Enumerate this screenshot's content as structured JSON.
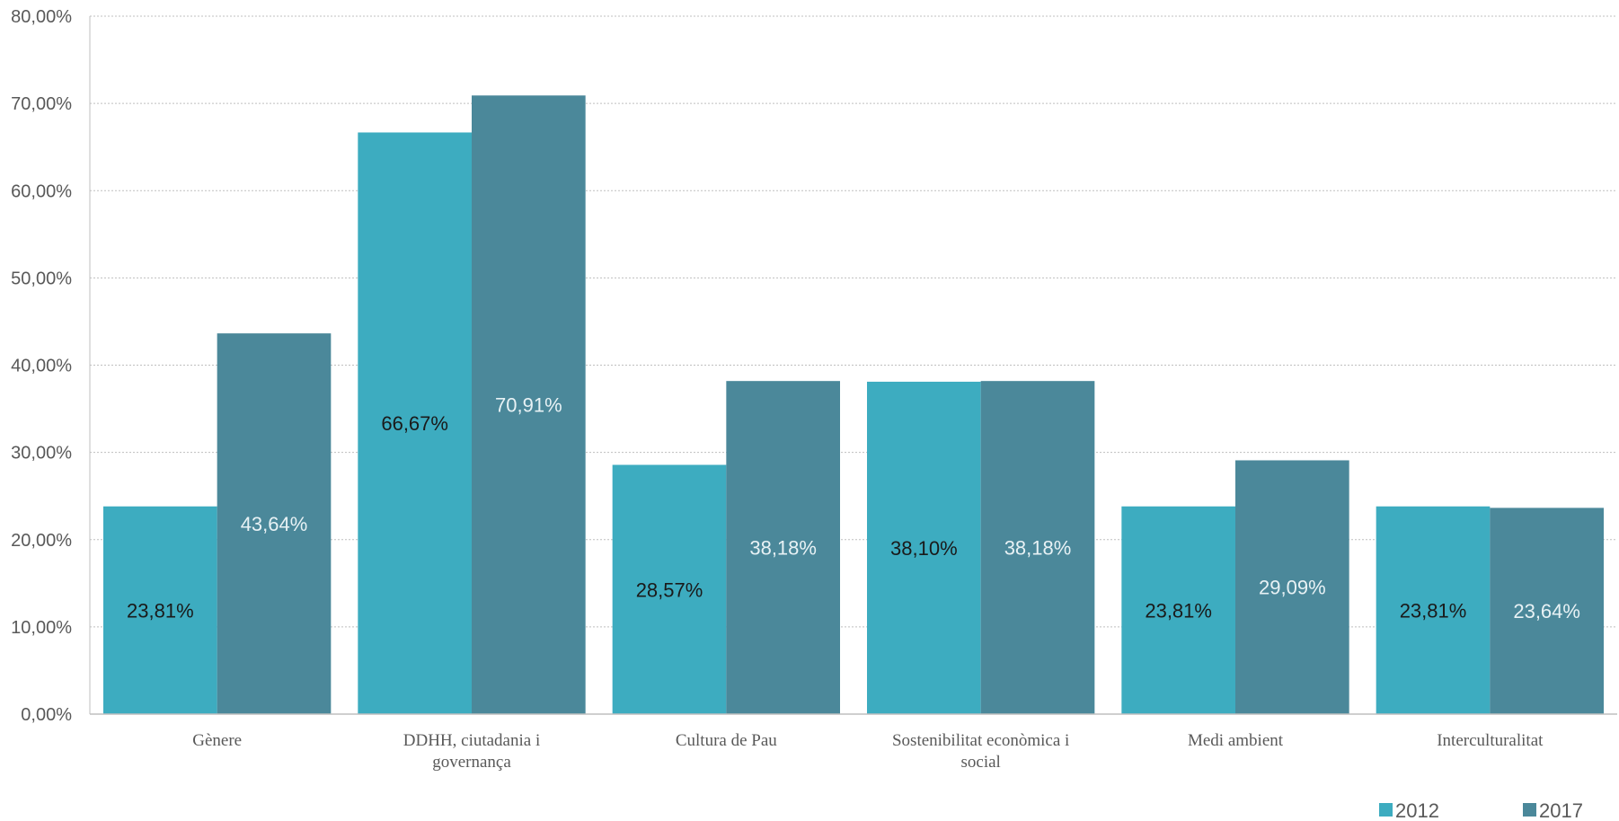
{
  "chart_data": {
    "type": "bar",
    "title": "",
    "xlabel": "",
    "ylabel": "",
    "ylim": [
      0,
      80
    ],
    "y_ticks": [
      "0,00%",
      "10,00%",
      "20,00%",
      "30,00%",
      "40,00%",
      "50,00%",
      "60,00%",
      "70,00%",
      "80,00%"
    ],
    "grid": true,
    "legend_position": "bottom-right",
    "categories": [
      [
        "Gènere"
      ],
      [
        "DDHH, ciutadania  i",
        "governança"
      ],
      [
        "Cultura de Pau"
      ],
      [
        "Sostenibilitat  econòmica  i",
        "social"
      ],
      [
        "Medi ambient"
      ],
      [
        "Interculturalitat"
      ]
    ],
    "series": [
      {
        "name": "2012",
        "color": "#3DACC0",
        "label_color": "#1a1a1a",
        "values": [
          23.81,
          66.67,
          28.57,
          38.1,
          23.81,
          23.81
        ],
        "labels": [
          "23,81%",
          "66,67%",
          "28,57%",
          "38,10%",
          "23,81%",
          "23,81%"
        ]
      },
      {
        "name": "2017",
        "color": "#4B889A",
        "label_color": "#e8f2f5",
        "values": [
          43.64,
          70.91,
          38.18,
          38.18,
          29.09,
          23.64
        ],
        "labels": [
          "43,64%",
          "70,91%",
          "38,18%",
          "38,18%",
          "29,09%",
          "23,64%"
        ]
      }
    ]
  }
}
